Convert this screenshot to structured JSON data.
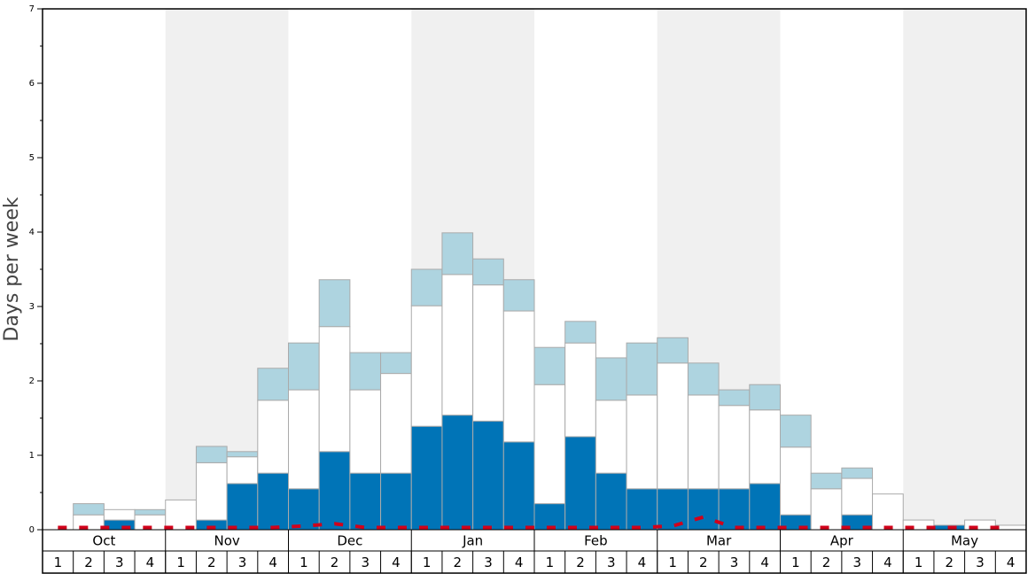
{
  "chart_data": {
    "type": "stacked_bar",
    "y_label": "Days per week",
    "months": [
      "Oct",
      "Nov",
      "Dec",
      "Jan",
      "Feb",
      "Mar",
      "Apr",
      "May"
    ],
    "categories": [
      "1",
      "2",
      "3",
      "4",
      "1",
      "2",
      "3",
      "4",
      "1",
      "2",
      "3",
      "4",
      "1",
      "2",
      "3",
      "4",
      "1",
      "2",
      "3",
      "4",
      "1",
      "2",
      "3",
      "4",
      "1",
      "2",
      "3",
      "4",
      "1",
      "2",
      "3",
      "4"
    ],
    "series": [
      {
        "color": "#0074b7",
        "values": [
          0,
          0,
          0.13,
          0,
          0,
          0.13,
          0.62,
          0.76,
          0.55,
          1.05,
          0.76,
          0.76,
          1.39,
          1.54,
          1.46,
          1.18,
          0.35,
          1.25,
          0.76,
          0.55,
          0.55,
          0.55,
          0.55,
          0.62,
          0.2,
          0,
          0.2,
          0,
          0,
          0.06,
          0,
          0
        ]
      },
      {
        "color": "#ffffff",
        "values": [
          0,
          0.2,
          0.14,
          0.2,
          0.4,
          0.77,
          0.36,
          0.98,
          1.33,
          1.68,
          1.12,
          1.34,
          1.62,
          1.89,
          1.83,
          1.76,
          1.6,
          1.26,
          0.98,
          1.26,
          1.69,
          1.26,
          1.12,
          0.99,
          0.91,
          0.55,
          0.49,
          0.48,
          0.13,
          0,
          0.13,
          0.06
        ]
      },
      {
        "color": "#aed4e0",
        "values": [
          0,
          0.15,
          0,
          0.07,
          0,
          0.22,
          0.07,
          0.43,
          0.63,
          0.63,
          0.5,
          0.28,
          0.49,
          0.56,
          0.35,
          0.42,
          0.5,
          0.29,
          0.57,
          0.7,
          0.34,
          0.43,
          0.21,
          0.34,
          0.43,
          0.21,
          0.14,
          0,
          0,
          0,
          0,
          0
        ]
      }
    ],
    "line": {
      "color": "#d0021b",
      "dashed": true,
      "values": [
        0.03,
        0.03,
        0.03,
        0.03,
        0.03,
        0.03,
        0.03,
        0.03,
        0.05,
        0.08,
        0.03,
        0.03,
        0.03,
        0.03,
        0.03,
        0.03,
        0.03,
        0.03,
        0.03,
        0.03,
        0.05,
        0.17,
        0.03,
        0.03,
        0.03,
        0.03,
        0.03,
        0.03,
        0.03,
        0.03,
        0.03,
        0.03
      ]
    },
    "ylim": [
      0,
      7
    ],
    "yticks": [
      0,
      1,
      2,
      3,
      4,
      5,
      6,
      7
    ],
    "yminorticks": [
      0.5,
      1.5,
      2.5,
      3.5,
      4.5,
      5.5,
      6.5
    ],
    "band_color": "#f0f0f0"
  }
}
